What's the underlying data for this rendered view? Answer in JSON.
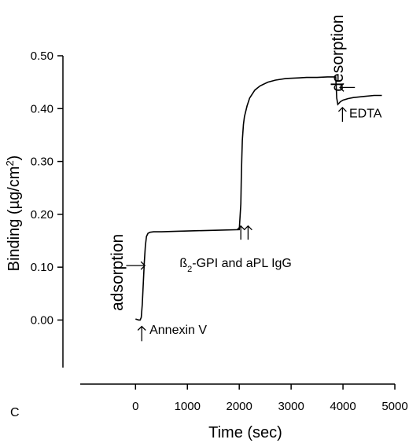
{
  "chart_data": {
    "type": "line",
    "panel_label": "C",
    "xlabel": "Time (sec)",
    "ylabel_main": "Binding (µg/cm",
    "ylabel_sup": "2",
    "ylabel_close": ")",
    "xlim": [
      -1400,
      5000
    ],
    "ylim": [
      -0.09,
      0.5
    ],
    "xticks": [
      0,
      1000,
      2000,
      3000,
      4000,
      5000
    ],
    "xtick_labels": [
      "0",
      "1000",
      "2000",
      "3000",
      "4000",
      "5000"
    ],
    "yticks": [
      0.0,
      0.1,
      0.2,
      0.3,
      0.4,
      0.5
    ],
    "ytick_labels": [
      "0.00",
      "0.10",
      "0.20",
      "0.30",
      "0.40",
      "0.50"
    ],
    "grid": false,
    "series": [
      {
        "x": [
          0,
          30,
          60,
          90,
          110,
          130,
          150,
          170,
          190,
          210,
          240,
          280,
          350,
          500,
          800,
          1200,
          1600,
          2000,
          2030,
          2040,
          2050,
          2060,
          2080,
          2100,
          2150,
          2200,
          2300,
          2400,
          2550,
          2700,
          2900,
          3100,
          3300,
          3500,
          3700,
          3860,
          3870,
          3880,
          3900,
          3950,
          4000,
          4100,
          4200,
          4400,
          4600,
          4750
        ],
        "y": [
          0.002,
          0.001,
          0.0,
          0.0,
          0.005,
          0.03,
          0.07,
          0.11,
          0.14,
          0.158,
          0.164,
          0.166,
          0.167,
          0.167,
          0.168,
          0.169,
          0.17,
          0.171,
          0.22,
          0.27,
          0.31,
          0.34,
          0.37,
          0.385,
          0.405,
          0.42,
          0.435,
          0.443,
          0.45,
          0.454,
          0.457,
          0.458,
          0.459,
          0.459,
          0.46,
          0.46,
          0.44,
          0.42,
          0.408,
          0.413,
          0.416,
          0.419,
          0.421,
          0.423,
          0.425,
          0.425
        ]
      }
    ],
    "annotations": [
      {
        "text": "adsorption",
        "x": -250,
        "y": 0.09,
        "rotation": -90
      },
      {
        "text": "desorption",
        "x": 4000,
        "y": 0.505,
        "rotation": -90
      },
      {
        "text": "Annexin V",
        "x": 270,
        "y": -0.026
      },
      {
        "text": "EDTA",
        "x": 4120,
        "y": 0.383
      },
      {
        "text": "ß",
        "sub": "2",
        "rest": "-GPI and aPL IgG",
        "x": 850,
        "y": 0.1
      }
    ],
    "arrows": [
      {
        "direction": "up",
        "x": 120,
        "y_from": -0.04,
        "y_to": -0.012
      },
      {
        "direction": "up",
        "x": 2030,
        "y_from": 0.152,
        "y_to": 0.178
      },
      {
        "direction": "up",
        "x": 2170,
        "y_from": 0.152,
        "y_to": 0.178
      },
      {
        "direction": "up",
        "x": 3990,
        "y_from": 0.375,
        "y_to": 0.402
      },
      {
        "direction": "right",
        "x_from": -180,
        "x_to": 180,
        "y": 0.103
      },
      {
        "direction": "left",
        "x_from": 4230,
        "x_to": 3940,
        "y": 0.44
      }
    ]
  }
}
